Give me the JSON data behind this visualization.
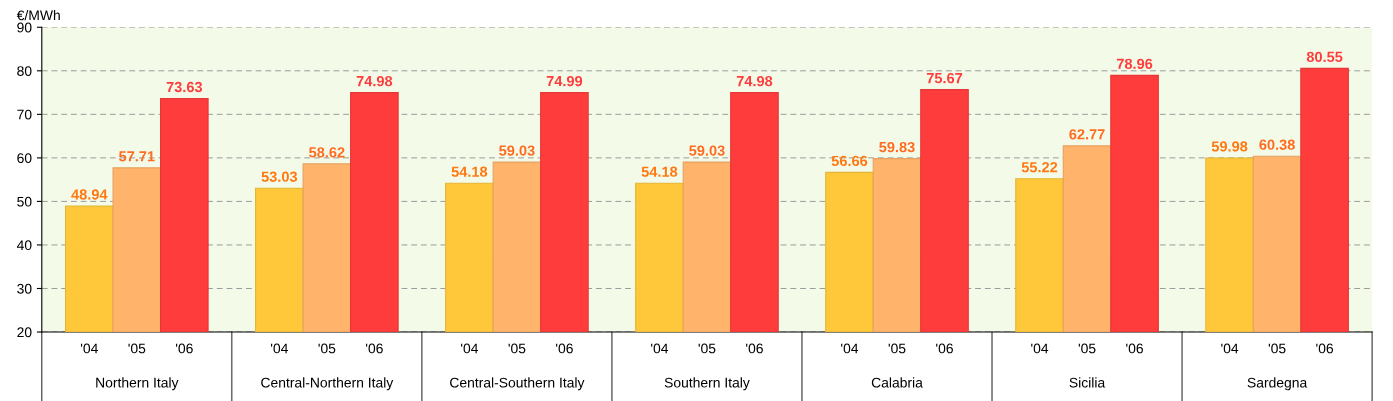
{
  "chart_data": {
    "type": "bar",
    "ylabel": "€/MWh",
    "categories": [
      "Northern Italy",
      "Central-Northern Italy",
      "Central-Southern Italy",
      "Southern Italy",
      "Calabria",
      "Sicilia",
      "Sardegna"
    ],
    "series": [
      {
        "name": "'04",
        "color": "#ffc83a",
        "values": [
          48.94,
          53.03,
          54.18,
          54.18,
          56.66,
          55.22,
          59.98
        ]
      },
      {
        "name": "'05",
        "color": "#ffb36b",
        "values": [
          57.71,
          58.62,
          59.03,
          59.03,
          59.83,
          62.77,
          60.38
        ]
      },
      {
        "name": "'06",
        "color": "#ff3c3c",
        "values": [
          73.63,
          74.98,
          74.99,
          74.98,
          75.67,
          78.96,
          80.55
        ]
      }
    ],
    "ylim": [
      20,
      90
    ],
    "yticks": [
      20,
      30,
      40,
      50,
      60,
      70,
      80,
      90
    ],
    "grid": "y",
    "data_labels": true
  }
}
